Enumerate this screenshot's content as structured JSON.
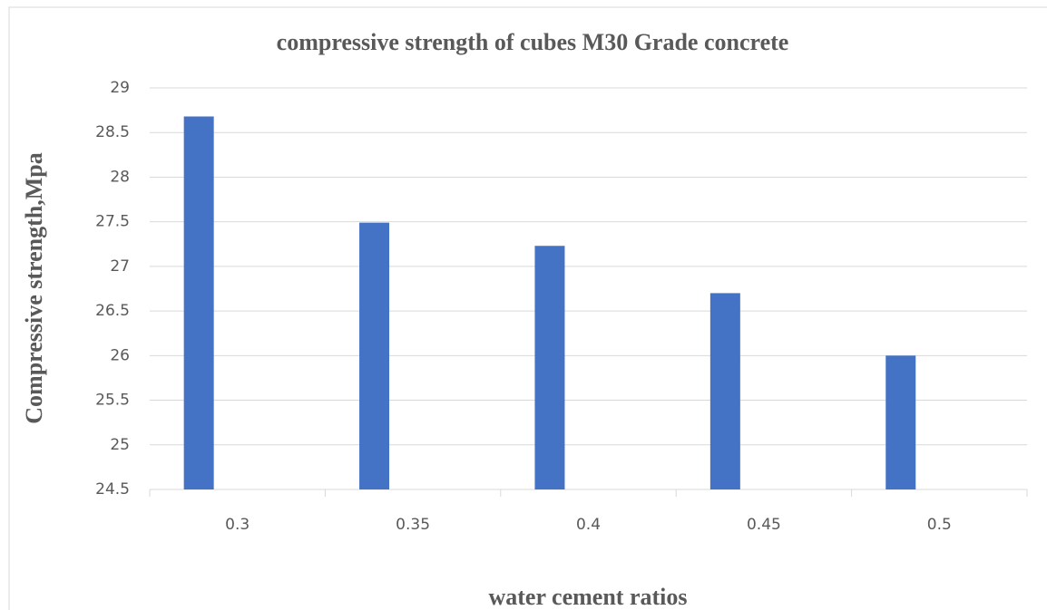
{
  "chart_data": {
    "type": "bar",
    "title": "compressive strength of cubes M30 Grade concrete",
    "x_label": "water cement ratios",
    "y_label": "Compressive strength,Mpa",
    "categories": [
      "0.3",
      "0.35",
      "0.4",
      "0.45",
      "0.5"
    ],
    "values": [
      28.68,
      27.49,
      27.23,
      26.7,
      26.0
    ],
    "color": "#4472c4",
    "ylim": [
      24.5,
      29
    ],
    "yticks": [
      24.5,
      25,
      25.5,
      26,
      26.5,
      27,
      27.5,
      28,
      28.5,
      29
    ],
    "grid": true
  }
}
